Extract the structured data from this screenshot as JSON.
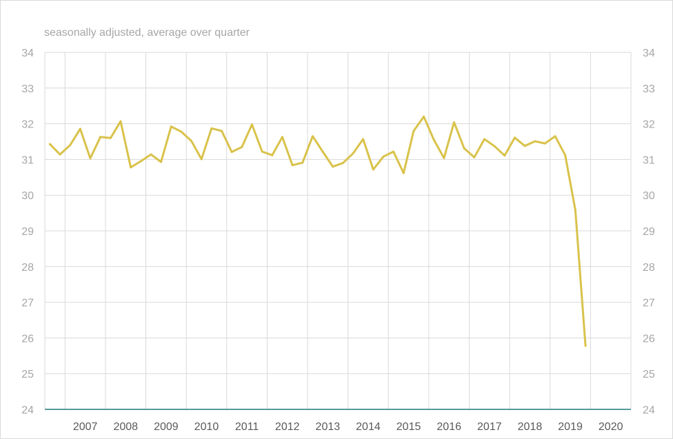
{
  "chart_data": {
    "type": "line",
    "subtitle": "seasonally adjusted, average over quarter",
    "xlabel": "",
    "ylabel": "",
    "ylim": [
      24,
      34
    ],
    "y_ticks": [
      24,
      25,
      26,
      27,
      28,
      29,
      30,
      31,
      32,
      33,
      34
    ],
    "right_axis_ticks": true,
    "grid": true,
    "legend": "none",
    "x_tick_labels": [
      "2007",
      "2008",
      "2009",
      "2010",
      "2011",
      "2012",
      "2013",
      "2014",
      "2015",
      "2016",
      "2017",
      "2018",
      "2019",
      "2020"
    ],
    "x_first_year": 2006,
    "x_last_year": 2020,
    "series": [
      {
        "color": "#D9C24A",
        "quarters_start": "2006 Q3",
        "values": [
          31.43,
          31.14,
          31.4,
          31.86,
          31.03,
          31.63,
          31.6,
          32.07,
          30.78,
          30.95,
          31.14,
          30.93,
          31.92,
          31.78,
          31.52,
          31.01,
          31.87,
          31.8,
          31.21,
          31.35,
          31.98,
          31.22,
          31.12,
          31.63,
          30.84,
          30.91,
          31.65,
          31.22,
          30.8,
          30.9,
          31.17,
          31.57,
          30.72,
          31.08,
          31.22,
          30.62,
          31.8,
          32.2,
          31.55,
          31.04,
          32.04,
          31.31,
          31.06,
          31.57,
          31.37,
          31.11,
          31.61,
          31.38,
          31.51,
          31.45,
          31.65,
          31.12,
          29.58,
          25.78
        ]
      }
    ],
    "colors": {
      "line": "#D9C24A",
      "grid": "#D9D9D9",
      "baseline": "#1F7A7A",
      "tick_label": "#595959",
      "y_tick_label": "#A6A6A6",
      "subtitle": "#A6A6A6",
      "border": "#D9D9D9"
    }
  }
}
